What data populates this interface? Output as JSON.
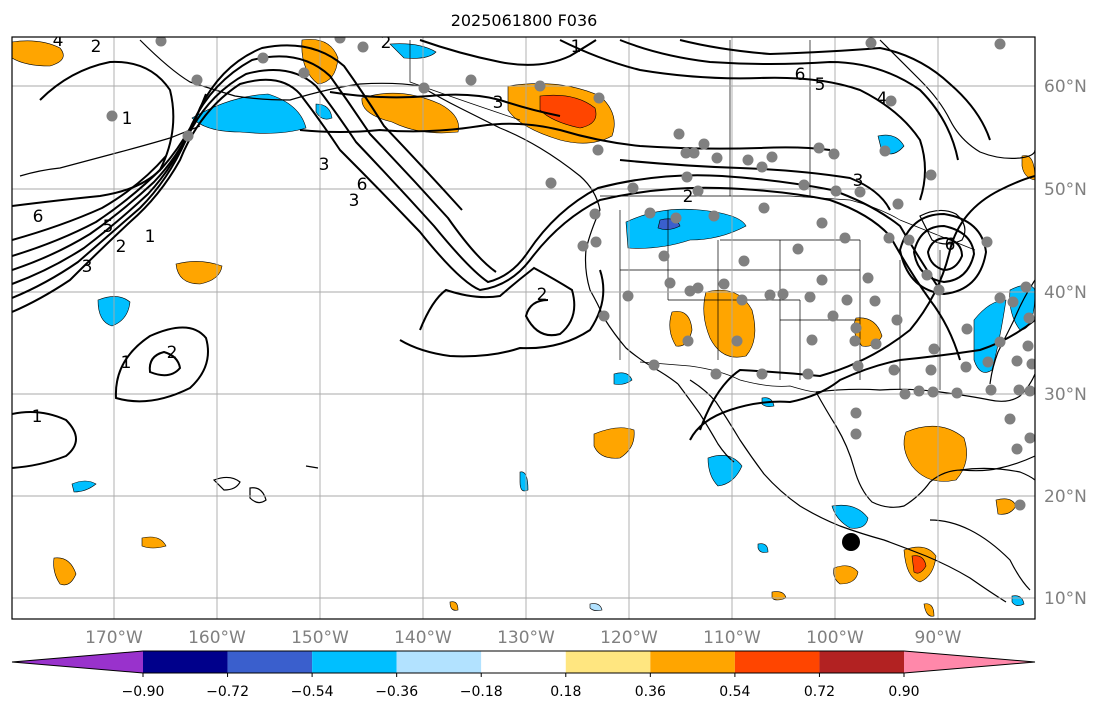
{
  "title": "2025061800 F036",
  "lon_ticks": [
    "170°W",
    "160°W",
    "150°W",
    "140°W",
    "130°W",
    "120°W",
    "110°W",
    "100°W",
    "90°W"
  ],
  "lat_ticks": [
    "60°N",
    "50°N",
    "40°N",
    "30°N",
    "20°N",
    "10°N"
  ],
  "colorbar": {
    "tick_labels": [
      "−0.90",
      "−0.72",
      "−0.54",
      "−0.36",
      "−0.18",
      "0.18",
      "0.36",
      "0.54",
      "0.72",
      "0.90"
    ],
    "colors": [
      "#9932cc",
      "#00008b",
      "#3a5fcd",
      "#00bfff",
      "#b2e2ff",
      "#ffffff",
      "#ffe680",
      "#ffa500",
      "#ff4500",
      "#b22222",
      "#ff88aa"
    ]
  },
  "contour_labels": [
    "1",
    "2",
    "3",
    "4",
    "5",
    "6"
  ],
  "colors": {
    "contour": "#000000",
    "station_dot": "#808080",
    "highlight_dot": "#000000",
    "grid": "#aaaaaa"
  }
}
